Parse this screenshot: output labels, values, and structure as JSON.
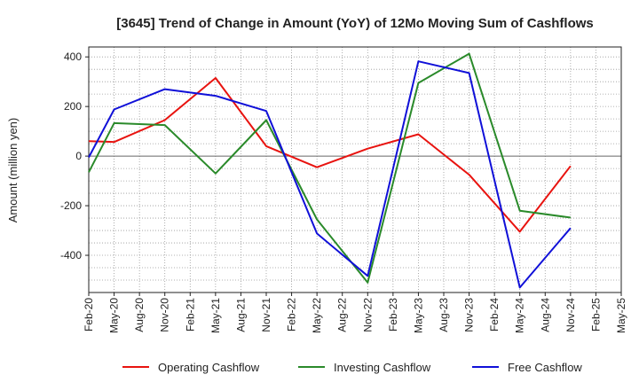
{
  "chart_data": {
    "type": "line",
    "title": "[3645]  Trend of Change in Amount (YoY) of 12Mo Moving Sum of Cashflows",
    "xlabel": "",
    "ylabel": "Amount (million yen)",
    "ylim": [
      -550,
      440
    ],
    "yticks": [
      400,
      200,
      0,
      -200,
      -400
    ],
    "ytick_labels": [
      "400",
      "200",
      "0",
      "-200",
      "-400"
    ],
    "categories": [
      "Feb-20",
      "May-20",
      "Aug-20",
      "Nov-20",
      "Feb-21",
      "May-21",
      "Aug-21",
      "Nov-21",
      "Feb-22",
      "May-22",
      "Aug-22",
      "Nov-22",
      "Feb-23",
      "May-23",
      "Aug-23",
      "Nov-23",
      "Feb-24",
      "May-24",
      "Aug-24",
      "Nov-24",
      "Feb-25",
      "May-25"
    ],
    "grid": true,
    "legend_position": "bottom",
    "series": [
      {
        "name": "Operating Cashflow",
        "color": "#e8130f",
        "values": [
          60,
          57,
          null,
          145,
          null,
          315,
          null,
          40,
          null,
          -45,
          null,
          30,
          null,
          88,
          null,
          -75,
          null,
          -305,
          null,
          -40,
          null,
          null
        ]
      },
      {
        "name": "Investing Cashflow",
        "color": "#2a8a2a",
        "values": [
          -65,
          133,
          null,
          125,
          null,
          -70,
          null,
          145,
          null,
          -255,
          null,
          -510,
          null,
          295,
          null,
          413,
          null,
          -220,
          null,
          -248,
          null,
          null
        ]
      },
      {
        "name": "Free Cashflow",
        "color": "#1010d8",
        "values": [
          -5,
          188,
          null,
          270,
          null,
          243,
          null,
          182,
          null,
          -312,
          null,
          -483,
          null,
          382,
          null,
          335,
          null,
          -530,
          null,
          -290,
          null,
          null
        ]
      }
    ]
  }
}
